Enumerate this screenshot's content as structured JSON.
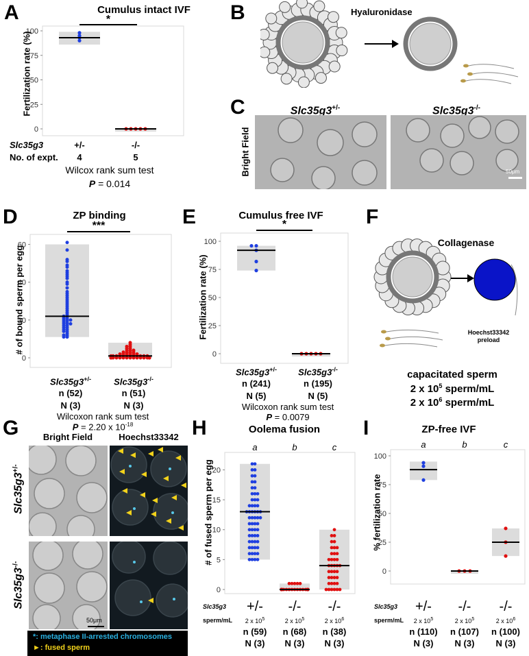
{
  "panels": {
    "A": {
      "label": "A",
      "title": "Cumulus intact IVF",
      "ylabel": "Fertilization rate (%)",
      "sig": "*",
      "row_gene": "Slc35g3",
      "row_expt": "No. of expt.",
      "genotypes": [
        "+/-",
        "-/-"
      ],
      "n_expt": [
        "4",
        "5"
      ],
      "test": "Wilcox rank sum test",
      "p_label": "P",
      "p_value": "= 0.014"
    },
    "B": {
      "label": "B",
      "enzyme": "Hyaluronidase"
    },
    "C": {
      "label": "C",
      "col1": "Slc35g3",
      "col1_sup": "+/-",
      "col2": "Slc35g3",
      "col2_sup": "-/-",
      "row": "Bright Field",
      "scale": "50μm"
    },
    "D": {
      "label": "D",
      "title": "ZP binding",
      "ylabel": "# of bound sperm per egg",
      "sig": "***",
      "genotypes": [
        {
          "gene": "Slc35g3",
          "sup": "+/-",
          "n": "n (52)",
          "N": "N (3)"
        },
        {
          "gene": "Slc35g3",
          "sup": "-/-",
          "n": "n (51)",
          "N": "N (3)"
        }
      ],
      "test": "Wilcoxon rank sum test",
      "p_label": "P",
      "p_value": "= 2.20 x 10",
      "p_exp": "-18"
    },
    "E": {
      "label": "E",
      "title": "Cumulus free IVF",
      "ylabel": "Fertilization rate (%)",
      "sig": "*",
      "genotypes": [
        {
          "gene": "Slc35g3",
          "sup": "+/-",
          "n": "n (241)",
          "N": "N (5)"
        },
        {
          "gene": "Slc35g3",
          "sup": "-/-",
          "n": "n (195)",
          "N": "N (5)"
        }
      ],
      "test": "Wilcoxon rank sum test",
      "p_label": "P",
      "p_value": "= 0.0079"
    },
    "F": {
      "label": "F",
      "enzyme": "Collagenase",
      "stain": "Hoechst33342",
      "stain2": "preload",
      "sperm_title": "capacitated sperm",
      "conc1": "2 x 10",
      "conc1_exp": "5",
      "conc2": "2 x 10",
      "conc2_exp": "6",
      "conc_unit": "sperm/mL"
    },
    "G": {
      "label": "G",
      "col1": "Bright Field",
      "col2": "Hoechst33342",
      "row1": "Slc35g3",
      "row1_sup": "+/-",
      "row2": "Slc35g3",
      "row2_sup": "-/-",
      "scale": "50μm",
      "legend1_sym": "*",
      "legend1": ": metaphase II-arrested chromosomes",
      "legend2_sym": "►",
      "legend2": ": fused sperm"
    },
    "H": {
      "label": "H",
      "title": "Oolema fusion",
      "ylabel": "# of fused sperm per egg",
      "letters": [
        "a",
        "b",
        "c"
      ],
      "row_gene": "Slc35g3",
      "row_conc": "sperm/mL",
      "genotypes": [
        "+/-",
        "-/-",
        "-/-"
      ],
      "concs": [
        "2 x 10",
        "2 x 10",
        "2 x 10"
      ],
      "conc_exps": [
        "5",
        "5",
        "6"
      ],
      "ns": [
        "n (59)",
        "n (68)",
        "n (38)"
      ],
      "Ns": [
        "N (3)",
        "N (3)",
        "N (3)"
      ]
    },
    "I": {
      "label": "I",
      "title": "ZP-free IVF",
      "ylabel": "% fertilization rate",
      "letters": [
        "a",
        "b",
        "c"
      ],
      "row_gene": "Slc35g3",
      "row_conc": "sperm/mL",
      "genotypes": [
        "+/-",
        "-/-",
        "-/-"
      ],
      "concs": [
        "2 x 10",
        "2 x 10",
        "2 x 10"
      ],
      "conc_exps": [
        "5",
        "5",
        "6"
      ],
      "ns": [
        "n (110)",
        "n (107)",
        "n (100)"
      ],
      "Ns": [
        "N (3)",
        "N (3)",
        "N (3)"
      ]
    }
  },
  "chart_data": [
    {
      "type": "scatter",
      "panel": "A",
      "title": "Cumulus intact IVF",
      "ylabel": "Fertilization rate (%)",
      "categories": [
        "+/-",
        "-/-"
      ],
      "ylim": [
        0,
        100
      ],
      "yticks": [
        0,
        25,
        50,
        75,
        100
      ],
      "series": [
        {
          "values": [
            98,
            93,
            95,
            90
          ],
          "color": "#1f3fe0",
          "median": 93,
          "box": [
            86,
            99
          ]
        },
        {
          "values": [
            0,
            0,
            0,
            0,
            0
          ],
          "color": "#e01010",
          "median": 0,
          "box": [
            0,
            0
          ]
        }
      ]
    },
    {
      "type": "scatter",
      "panel": "D",
      "title": "ZP binding",
      "ylabel": "# of bound sperm per egg",
      "categories": [
        "Slc35g3+/-",
        "Slc35g3-/-"
      ],
      "ylim": [
        0,
        62
      ],
      "yticks": [
        0,
        20,
        40,
        60
      ],
      "series": [
        {
          "values": [
            61,
            57,
            52,
            51,
            49,
            48,
            46,
            45,
            44,
            43,
            42,
            40,
            39,
            37,
            35,
            34,
            33,
            32,
            31,
            30,
            29,
            28,
            27,
            26,
            25,
            24,
            23,
            22,
            22,
            21,
            21,
            20,
            20,
            19,
            19,
            18,
            18,
            18,
            17,
            17,
            16,
            16,
            15,
            15,
            14,
            14,
            13,
            12,
            12,
            11,
            11,
            20
          ],
          "color": "#1f3fe0",
          "median": 22,
          "box": [
            11,
            60
          ]
        },
        {
          "values": [
            8,
            7,
            6,
            6,
            5,
            5,
            4,
            4,
            4,
            3,
            3,
            3,
            3,
            2,
            2,
            2,
            2,
            2,
            2,
            1,
            1,
            1,
            1,
            1,
            1,
            1,
            1,
            1,
            1,
            1,
            1,
            0,
            0,
            0,
            0,
            0,
            0,
            0,
            0,
            0,
            0,
            0,
            0,
            0,
            0,
            0,
            0,
            0,
            0,
            0,
            0
          ],
          "color": "#e01010",
          "median": 1,
          "box": [
            0,
            8
          ]
        }
      ]
    },
    {
      "type": "scatter",
      "panel": "E",
      "title": "Cumulus free IVF",
      "ylabel": "Fertilization rate (%)",
      "categories": [
        "Slc35g3+/-",
        "Slc35g3-/-"
      ],
      "ylim": [
        0,
        100
      ],
      "yticks": [
        0,
        25,
        50,
        75,
        100
      ],
      "series": [
        {
          "values": [
            96,
            96,
            92,
            82,
            74
          ],
          "color": "#1f3fe0",
          "median": 92,
          "box": [
            74,
            96
          ]
        },
        {
          "values": [
            0,
            0,
            0,
            0,
            0
          ],
          "color": "#e01010",
          "median": 0,
          "box": [
            0,
            0
          ]
        }
      ]
    },
    {
      "type": "scatter",
      "panel": "H",
      "title": "Oolema fusion",
      "ylabel": "# of fused sperm per egg",
      "categories": [
        "+/- 2x10^5",
        "-/- 2x10^5",
        "-/- 2x10^6"
      ],
      "ylim": [
        0,
        22
      ],
      "yticks": [
        0,
        5,
        10,
        15,
        20
      ],
      "series": [
        {
          "values": [
            21,
            21,
            20,
            20,
            19,
            19,
            18,
            18,
            17,
            17,
            16,
            16,
            16,
            15,
            15,
            15,
            14,
            14,
            14,
            14,
            13,
            13,
            13,
            13,
            12,
            12,
            12,
            12,
            11,
            11,
            11,
            11,
            10,
            10,
            10,
            10,
            9,
            9,
            9,
            9,
            8,
            8,
            8,
            8,
            7,
            7,
            7,
            7,
            6,
            6,
            6,
            6,
            5,
            5,
            5,
            5,
            13,
            13,
            12
          ],
          "color": "#1f3fe0",
          "median": 13,
          "box": [
            5,
            21
          ]
        },
        {
          "values": [
            1,
            1,
            1,
            1,
            1,
            0,
            0,
            0,
            0,
            0,
            0,
            0,
            0,
            0,
            0,
            0,
            0,
            0,
            0,
            0,
            0,
            0,
            0,
            0,
            0,
            0,
            0,
            0,
            0,
            0,
            0,
            0,
            0,
            0,
            0,
            0,
            0,
            0,
            0,
            0,
            0,
            0,
            0,
            0,
            0,
            0,
            0,
            0,
            0,
            0,
            0,
            0,
            0,
            0,
            0,
            0,
            0,
            0,
            0,
            0,
            0,
            0,
            0,
            0,
            0,
            0,
            0,
            0
          ],
          "color": "#e01010",
          "median": 0,
          "box": [
            0,
            1
          ]
        },
        {
          "values": [
            10,
            9,
            9,
            8,
            8,
            7,
            7,
            7,
            6,
            6,
            6,
            5,
            5,
            5,
            5,
            4,
            4,
            4,
            4,
            4,
            3,
            3,
            3,
            3,
            2,
            2,
            2,
            2,
            1,
            1,
            1,
            1,
            0,
            0,
            0,
            0,
            0,
            0
          ],
          "color": "#e01010",
          "median": 4,
          "box": [
            0,
            10
          ]
        }
      ]
    },
    {
      "type": "scatter",
      "panel": "I",
      "title": "ZP-free IVF",
      "ylabel": "% fertilization rate",
      "categories": [
        "+/- 2x10^5",
        "-/- 2x10^5",
        "-/- 2x10^6"
      ],
      "ylim": [
        0,
        100
      ],
      "yticks": [
        0,
        25,
        50,
        75,
        100
      ],
      "series": [
        {
          "values": [
            94,
            91,
            79
          ],
          "color": "#1f3fe0",
          "median": 88,
          "box": [
            79,
            95
          ]
        },
        {
          "values": [
            0,
            0,
            0
          ],
          "color": "#e01010",
          "median": 0,
          "box": [
            0,
            0
          ]
        },
        {
          "values": [
            37,
            25,
            13
          ],
          "color": "#e01010",
          "median": 25,
          "box": [
            13,
            37
          ]
        }
      ]
    }
  ]
}
